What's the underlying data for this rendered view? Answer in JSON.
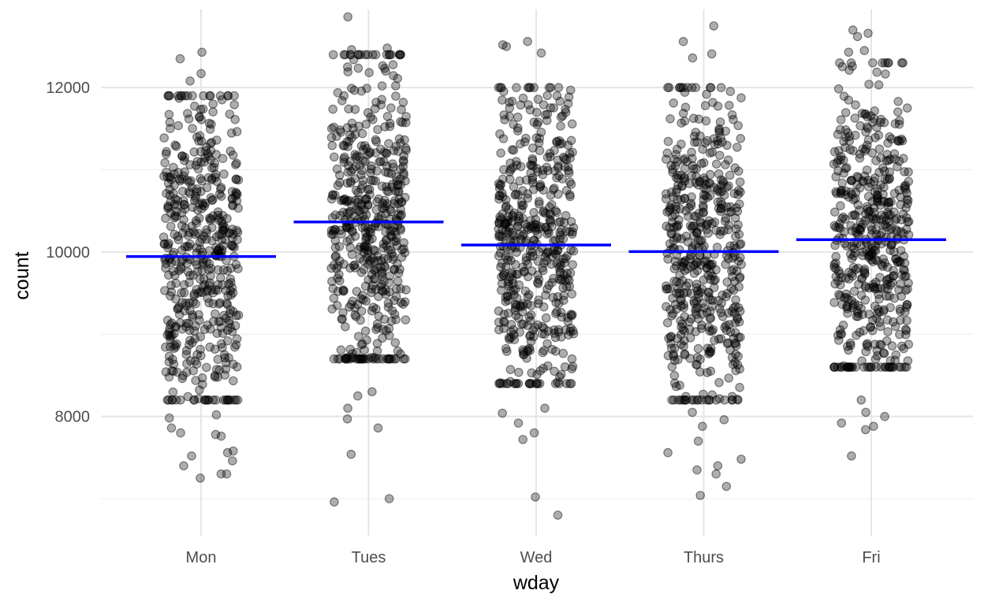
{
  "chart_data": {
    "type": "scatter",
    "subtype": "jitter-strip-with-group-means",
    "xlabel": "wday",
    "ylabel": "count",
    "categories": [
      "Mon",
      "Tues",
      "Wed",
      "Thurs",
      "Fri"
    ],
    "ylim": [
      6550,
      12950
    ],
    "y_ticks": [
      8000,
      10000,
      12000
    ],
    "y_tick_labels": [
      "8000",
      "10000",
      "12000"
    ],
    "grid": true,
    "legend": "none",
    "point_color": "#000000",
    "mean_color": "#0000ff",
    "points_per_category": 520,
    "means": [
      9945,
      10365,
      10085,
      10005,
      10150
    ],
    "groups": [
      {
        "category": "Mon",
        "mean": 9945,
        "core_range": [
          8200,
          11900
        ],
        "outliers": [
          12430,
          12350,
          12170,
          12080,
          8020,
          7980,
          7860,
          7780,
          7800,
          7760,
          7580,
          7560,
          7520,
          7460,
          7400,
          7300,
          7300,
          7250
        ]
      },
      {
        "category": "Tues",
        "mean": 10365,
        "core_range": [
          8700,
          12400
        ],
        "outliers": [
          12860,
          12480,
          12460,
          8300,
          8250,
          8100,
          7970,
          7860,
          7540,
          7000,
          6960
        ]
      },
      {
        "category": "Wed",
        "mean": 10085,
        "core_range": [
          8400,
          12000
        ],
        "outliers": [
          12560,
          12520,
          12500,
          12420,
          8100,
          8040,
          7920,
          7800,
          7720,
          7020,
          6800
        ]
      },
      {
        "category": "Thurs",
        "mean": 10005,
        "core_range": [
          8200,
          12000
        ],
        "outliers": [
          12750,
          12560,
          12410,
          12360,
          8050,
          7960,
          7880,
          7700,
          7560,
          7480,
          7400,
          7350,
          7300,
          7150,
          7040
        ]
      },
      {
        "category": "Fri",
        "mean": 10150,
        "core_range": [
          8600,
          12300
        ],
        "outliers": [
          12700,
          12660,
          12620,
          12450,
          12430,
          8200,
          8050,
          8000,
          7920,
          7880,
          7840,
          7520
        ]
      }
    ]
  }
}
